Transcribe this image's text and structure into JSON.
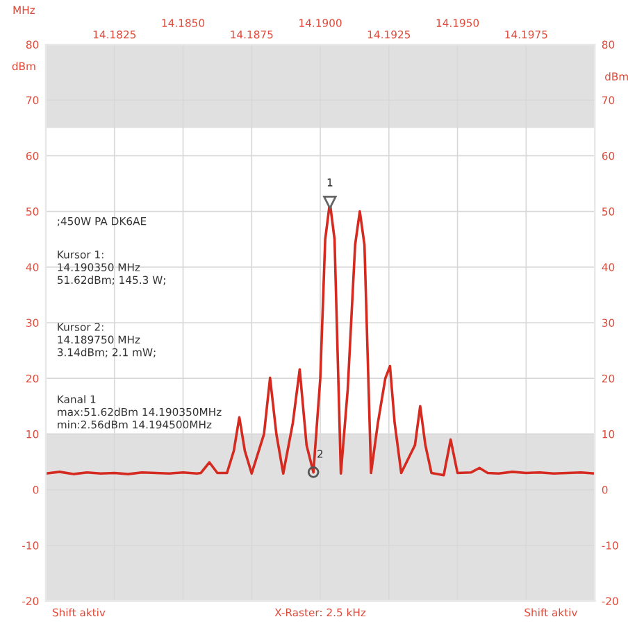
{
  "chart_data": {
    "type": "line",
    "xlabel": "MHz",
    "ylabel": "dBm",
    "y2label": "dBm",
    "xlim": [
      14.18,
      14.2
    ],
    "xticks": [
      {
        "value": 14.1825,
        "label": "14.1825"
      },
      {
        "value": 14.1875,
        "label": "14.1875"
      },
      {
        "value": 14.1925,
        "label": "14.1925"
      },
      {
        "value": 14.1975,
        "label": "14.1975"
      }
    ],
    "x2lim": [
      14.18,
      14.2
    ],
    "x2ticks": [
      {
        "value": 14.185,
        "label": "14.1850"
      },
      {
        "value": 14.19,
        "label": "14.1900"
      },
      {
        "value": 14.195,
        "label": "14.1950"
      }
    ],
    "ylim": [
      -20,
      80
    ],
    "yticks": [
      -20,
      -10,
      0,
      10,
      20,
      30,
      40,
      50,
      60,
      70,
      80
    ],
    "y2lim": [
      -20,
      80
    ],
    "y2ticks": [
      -20,
      -10,
      0,
      10,
      20,
      30,
      40,
      50,
      60,
      70,
      80
    ],
    "grid": true,
    "marker": "none",
    "line_style": "solid",
    "bands": [
      {
        "axis": "y",
        "from": 65,
        "to": 80,
        "color": "#e0e0e0"
      },
      {
        "axis": "y",
        "from": -20,
        "to": 10,
        "color": "#e0e0e0"
      }
    ],
    "series": [
      {
        "color": "#d42a20",
        "x": [
          14.18,
          14.1805,
          14.181,
          14.1815,
          14.182,
          14.1825,
          14.183,
          14.1835,
          14.184,
          14.1845,
          14.185,
          14.1855,
          14.18565,
          14.18596,
          14.18625,
          14.1866,
          14.18685,
          14.18705,
          14.18725,
          14.1875,
          14.18795,
          14.18817,
          14.1884,
          14.18865,
          14.189,
          14.18925,
          14.1895,
          14.18975,
          14.19,
          14.19018,
          14.19035,
          14.19052,
          14.19075,
          14.191,
          14.19127,
          14.19144,
          14.19161,
          14.19185,
          14.1921,
          14.19237,
          14.19254,
          14.19271,
          14.19295,
          14.19345,
          14.19364,
          14.19383,
          14.19405,
          14.1945,
          14.19475,
          14.195,
          14.1955,
          14.1958,
          14.1961,
          14.1965,
          14.197,
          14.1975,
          14.198,
          14.1985,
          14.199,
          14.1995,
          14.2
        ],
        "values": [
          2.9,
          3.2,
          2.8,
          3.1,
          2.9,
          3.0,
          2.8,
          3.1,
          3.0,
          2.9,
          3.1,
          2.9,
          3.0,
          4.9,
          3.0,
          3.0,
          7,
          13,
          7,
          2.9,
          10,
          20.1,
          10,
          2.9,
          12,
          21.6,
          8,
          3.1,
          20,
          45,
          51.6,
          45,
          2.9,
          18,
          44,
          50,
          44,
          3.0,
          12,
          20,
          22.2,
          12,
          3.0,
          8,
          15,
          8,
          3.0,
          2.6,
          9,
          3.0,
          3.1,
          3.9,
          3.0,
          2.9,
          3.2,
          3.0,
          3.1,
          2.9,
          3.0,
          3.1,
          2.9
        ]
      }
    ],
    "annotations": [
      ";450W PA DK6AE",
      "Kursor 1:\n14.190350 MHz\n51.62dBm; 145.3 W;",
      "Kursor 2:\n14.189750 MHz\n3.14dBm; 2.1 mW;",
      "Kanal 1\nmax:51.62dBm 14.190350MHz\nmin:2.56dBm 14.194500MHz",
      "Shift aktiv",
      "X-Raster: 2.5 kHz",
      "Shift aktiv",
      {
        "text": "1",
        "x": 14.19035,
        "y": 51.62
      },
      {
        "text": "2",
        "x": 14.18975,
        "y": 3.14
      }
    ]
  }
}
